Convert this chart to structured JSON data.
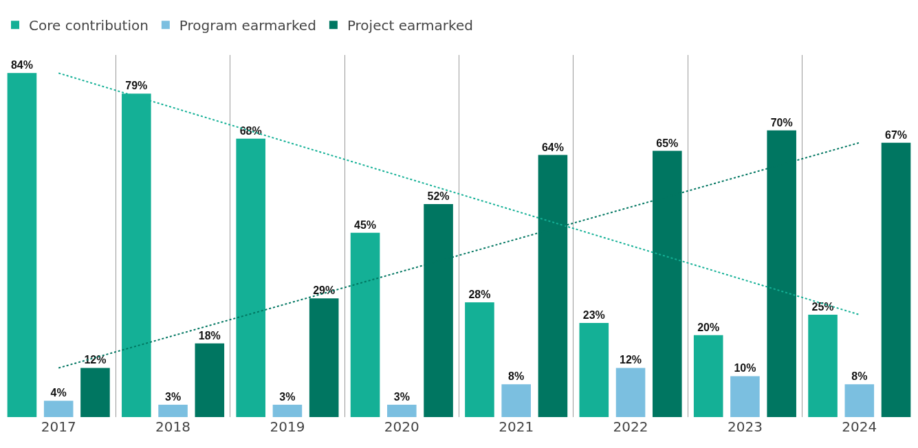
{
  "chart_data": {
    "type": "bar",
    "categories": [
      "2017",
      "2018",
      "2019",
      "2020",
      "2021",
      "2022",
      "2023",
      "2024"
    ],
    "series": [
      {
        "name": "Core contribution",
        "color": "#14b096",
        "values": [
          84,
          79,
          68,
          45,
          28,
          23,
          20,
          25
        ],
        "value_labels": [
          "84%",
          "79%",
          "68%",
          "45%",
          "28%",
          "23%",
          "20%",
          "25%"
        ]
      },
      {
        "name": "Program earmarked",
        "color": "#7bbfe0",
        "values": [
          4,
          3,
          3,
          3,
          8,
          12,
          10,
          8
        ],
        "value_labels": [
          "4%",
          "3%",
          "3%",
          "3%",
          "8%",
          "12%",
          "10%",
          "8%"
        ]
      },
      {
        "name": "Project earmarked",
        "color": "#007661",
        "values": [
          12,
          18,
          29,
          52,
          64,
          65,
          70,
          67
        ],
        "value_labels": [
          "12%",
          "18%",
          "29%",
          "52%",
          "64%",
          "65%",
          "70%",
          "67%"
        ]
      },
      {
        "type": "line",
        "color": "#14b096",
        "line_style": "dotted",
        "values": [
          84,
          null,
          null,
          null,
          null,
          null,
          null,
          25
        ]
      },
      {
        "type": "line",
        "color": "#007661",
        "line_style": "dotted",
        "values": [
          12,
          null,
          null,
          null,
          null,
          null,
          null,
          67
        ]
      }
    ],
    "legend": "top left",
    "grid": "x",
    "tick_labels": "x"
  }
}
